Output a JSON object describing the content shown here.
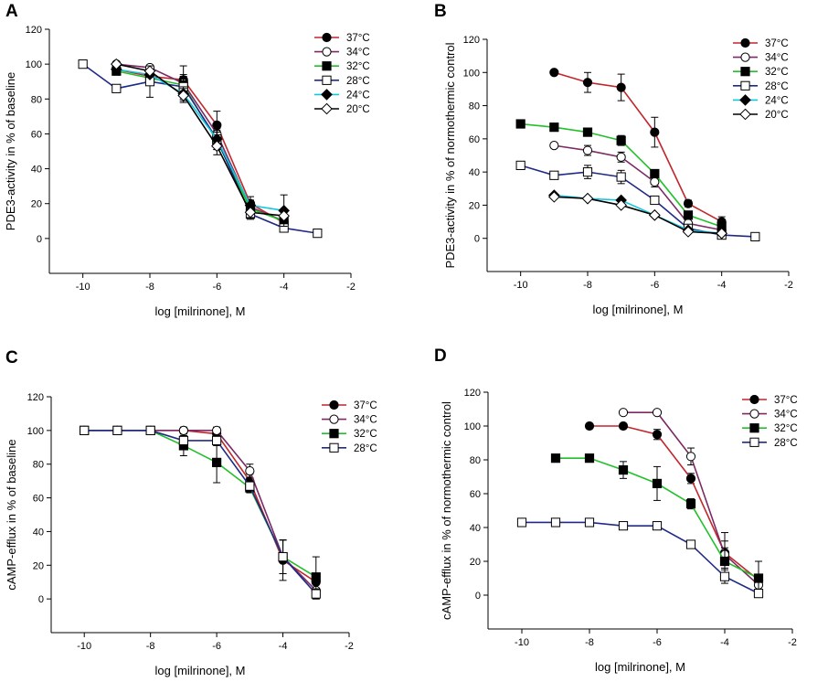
{
  "figure": {
    "series_styles": {
      "37C": {
        "label": "37°C",
        "line": "#c0272d",
        "marker": "circle",
        "fill": "#000000"
      },
      "34C": {
        "label": "34°C",
        "line": "#7b2a64",
        "marker": "circle",
        "fill": "#ffffff"
      },
      "32C": {
        "label": "32°C",
        "line": "#22c02a",
        "marker": "square",
        "fill": "#000000"
      },
      "28C": {
        "label": "28°C",
        "line": "#202a84",
        "marker": "square",
        "fill": "#ffffff"
      },
      "24C": {
        "label": "24°C",
        "line": "#12c8df",
        "marker": "diamond",
        "fill": "#000000"
      },
      "20C": {
        "label": "20°C",
        "line": "#000000",
        "marker": "diamond",
        "fill": "#ffffff"
      }
    }
  },
  "chart_data": [
    {
      "id": "A",
      "panel_label": "A",
      "type": "line",
      "xlabel": "log [milrinone], M",
      "ylabel": "PDE3-activity in % of baseline",
      "xlim": [
        -11,
        -2
      ],
      "ylim": [
        -20,
        120
      ],
      "xticks": [
        -10,
        -8,
        -6,
        -4,
        -2
      ],
      "yticks": [
        0,
        20,
        40,
        60,
        80,
        100,
        120
      ],
      "legend": "top-right",
      "series": [
        {
          "key": "37C",
          "name": "37°C",
          "x": [
            -9,
            -8,
            -7,
            -6,
            -5,
            -4
          ],
          "y": [
            97,
            93,
            91,
            65,
            20,
            9
          ],
          "err": [
            0,
            0,
            8,
            8,
            4,
            2
          ]
        },
        {
          "key": "34C",
          "name": "34°C",
          "x": [
            -9,
            -8,
            -7,
            -6,
            -5,
            -4
          ],
          "y": [
            100,
            98,
            89,
            60,
            18,
            10
          ],
          "err": [
            0,
            0,
            4,
            5,
            3,
            2
          ]
        },
        {
          "key": "32C",
          "name": "32°C",
          "x": [
            -9,
            -8,
            -7,
            -6,
            -5,
            -4
          ],
          "y": [
            96,
            92,
            88,
            56,
            17,
            10
          ],
          "err": [
            0,
            0,
            4,
            5,
            3,
            2
          ]
        },
        {
          "key": "28C",
          "name": "28°C",
          "x": [
            -10,
            -9,
            -8,
            -7,
            -6,
            -5,
            -4,
            -3
          ],
          "y": [
            100,
            86,
            90,
            87,
            57,
            14,
            6,
            3
          ],
          "err": [
            0,
            0,
            9,
            7,
            6,
            3,
            2,
            0
          ]
        },
        {
          "key": "24C",
          "name": "24°C",
          "x": [
            -9,
            -8,
            -7,
            -6,
            -5,
            -4
          ],
          "y": [
            97,
            94,
            83,
            57,
            19,
            16
          ],
          "err": [
            0,
            0,
            4,
            5,
            3,
            9
          ]
        },
        {
          "key": "20C",
          "name": "20°C",
          "x": [
            -9,
            -8,
            -7,
            -6,
            -5,
            -4
          ],
          "y": [
            100,
            96,
            82,
            53,
            15,
            13
          ],
          "err": [
            0,
            0,
            4,
            5,
            3,
            2
          ]
        }
      ]
    },
    {
      "id": "B",
      "panel_label": "B",
      "type": "line",
      "xlabel": "log [milrinone], M",
      "ylabel": "PDE3-activity in % of normothermic control",
      "xlim": [
        -11,
        -2
      ],
      "ylim": [
        -20,
        120
      ],
      "xticks": [
        -10,
        -8,
        -6,
        -4,
        -2
      ],
      "yticks": [
        0,
        20,
        40,
        60,
        80,
        100,
        120
      ],
      "legend": "top-right",
      "series": [
        {
          "key": "37C",
          "name": "37°C",
          "x": [
            -9,
            -8,
            -7,
            -6,
            -5,
            -4
          ],
          "y": [
            100,
            94,
            91,
            64,
            21,
            10
          ],
          "err": [
            0,
            6,
            8,
            9,
            2,
            3
          ]
        },
        {
          "key": "34C",
          "name": "34°C",
          "x": [
            -9,
            -8,
            -7,
            -6,
            -5,
            -4
          ],
          "y": [
            56,
            53,
            49,
            34,
            9,
            5
          ],
          "err": [
            0,
            3,
            3,
            3,
            1,
            1
          ]
        },
        {
          "key": "32C",
          "name": "32°C",
          "x": [
            -10,
            -9,
            -8,
            -7,
            -6,
            -5,
            -4
          ],
          "y": [
            69,
            67,
            64,
            59,
            39,
            14,
            7
          ],
          "err": [
            0,
            0,
            0,
            3,
            0,
            1,
            1
          ]
        },
        {
          "key": "28C",
          "name": "28°C",
          "x": [
            -10,
            -9,
            -8,
            -7,
            -6,
            -5,
            -4,
            -3
          ],
          "y": [
            44,
            38,
            40,
            37,
            23,
            6,
            2,
            1
          ],
          "err": [
            0,
            0,
            4,
            4,
            0,
            1,
            1,
            0
          ]
        },
        {
          "key": "24C",
          "name": "24°C",
          "x": [
            -9,
            -8,
            -7,
            -6,
            -5,
            -4
          ],
          "y": [
            26,
            24,
            23,
            14,
            5,
            3
          ],
          "err": [
            0,
            0,
            0,
            1,
            1,
            1
          ]
        },
        {
          "key": "20C",
          "name": "20°C",
          "x": [
            -9,
            -8,
            -7,
            -6,
            -5,
            -4
          ],
          "y": [
            25,
            24,
            20,
            14,
            4,
            3
          ],
          "err": [
            0,
            0,
            0,
            1,
            1,
            1
          ]
        }
      ]
    },
    {
      "id": "C",
      "panel_label": "C",
      "type": "line",
      "xlabel": "log [milrinone], M",
      "ylabel": "cAMP-efflux in % of baseline",
      "xlim": [
        -11,
        -2
      ],
      "ylim": [
        -20,
        120
      ],
      "xticks": [
        -10,
        -8,
        -6,
        -4,
        -2
      ],
      "yticks": [
        0,
        20,
        40,
        60,
        80,
        100,
        120
      ],
      "legend": "top-right",
      "series": [
        {
          "key": "37C",
          "name": "37°C",
          "x": [
            -10,
            -9,
            -8,
            -7,
            -6,
            -5,
            -4,
            -3
          ],
          "y": [
            100,
            100,
            100,
            100,
            98,
            70,
            23,
            10
          ],
          "err": [
            0,
            0,
            0,
            0,
            2,
            4,
            12,
            5
          ]
        },
        {
          "key": "34C",
          "name": "34°C",
          "x": [
            -10,
            -9,
            -8,
            -7,
            -6,
            -5,
            -4,
            -3
          ],
          "y": [
            100,
            100,
            100,
            100,
            100,
            76,
            25,
            5
          ],
          "err": [
            0,
            0,
            0,
            2,
            2,
            4,
            10,
            5
          ]
        },
        {
          "key": "32C",
          "name": "32°C",
          "x": [
            -10,
            -9,
            -8,
            -7,
            -6,
            -5,
            -4,
            -3
          ],
          "y": [
            100,
            100,
            100,
            91,
            81,
            66,
            25,
            13
          ],
          "err": [
            0,
            0,
            0,
            6,
            12,
            3,
            10,
            12
          ]
        },
        {
          "key": "28C",
          "name": "28°C",
          "x": [
            -10,
            -9,
            -8,
            -7,
            -6,
            -5,
            -4,
            -3
          ],
          "y": [
            100,
            100,
            100,
            94,
            94,
            67,
            25,
            3
          ],
          "err": [
            0,
            0,
            0,
            3,
            3,
            3,
            10,
            3
          ]
        }
      ]
    },
    {
      "id": "D",
      "panel_label": "D",
      "type": "line",
      "xlabel": "log [milrinone], M",
      "ylabel": "cAMP-efflux in % of normothermic control",
      "xlim": [
        -11,
        -2
      ],
      "ylim": [
        -20,
        120
      ],
      "xticks": [
        -10,
        -8,
        -6,
        -4,
        -2
      ],
      "yticks": [
        0,
        20,
        40,
        60,
        80,
        100,
        120
      ],
      "legend": "top-right",
      "series": [
        {
          "key": "37C",
          "name": "37°C",
          "x": [
            -8,
            -7,
            -6,
            -5,
            -4,
            -3
          ],
          "y": [
            100,
            100,
            95,
            69,
            25,
            9
          ],
          "err": [
            0,
            0,
            3,
            3,
            12,
            3
          ]
        },
        {
          "key": "34C",
          "name": "34°C",
          "x": [
            -7,
            -6,
            -5,
            -4,
            -3
          ],
          "y": [
            108,
            108,
            82,
            24,
            6
          ],
          "err": [
            0,
            0,
            5,
            8,
            6
          ]
        },
        {
          "key": "32C",
          "name": "32°C",
          "x": [
            -9,
            -8,
            -7,
            -6,
            -5,
            -4,
            -3
          ],
          "y": [
            81,
            81,
            74,
            66,
            54,
            20,
            10
          ],
          "err": [
            0,
            0,
            5,
            10,
            3,
            8,
            10
          ]
        },
        {
          "key": "28C",
          "name": "28°C",
          "x": [
            -10,
            -9,
            -8,
            -7,
            -6,
            -5,
            -4,
            -3
          ],
          "y": [
            43,
            43,
            43,
            41,
            41,
            30,
            11,
            1
          ],
          "err": [
            0,
            0,
            0,
            0,
            0,
            2,
            4,
            0
          ]
        }
      ]
    }
  ]
}
